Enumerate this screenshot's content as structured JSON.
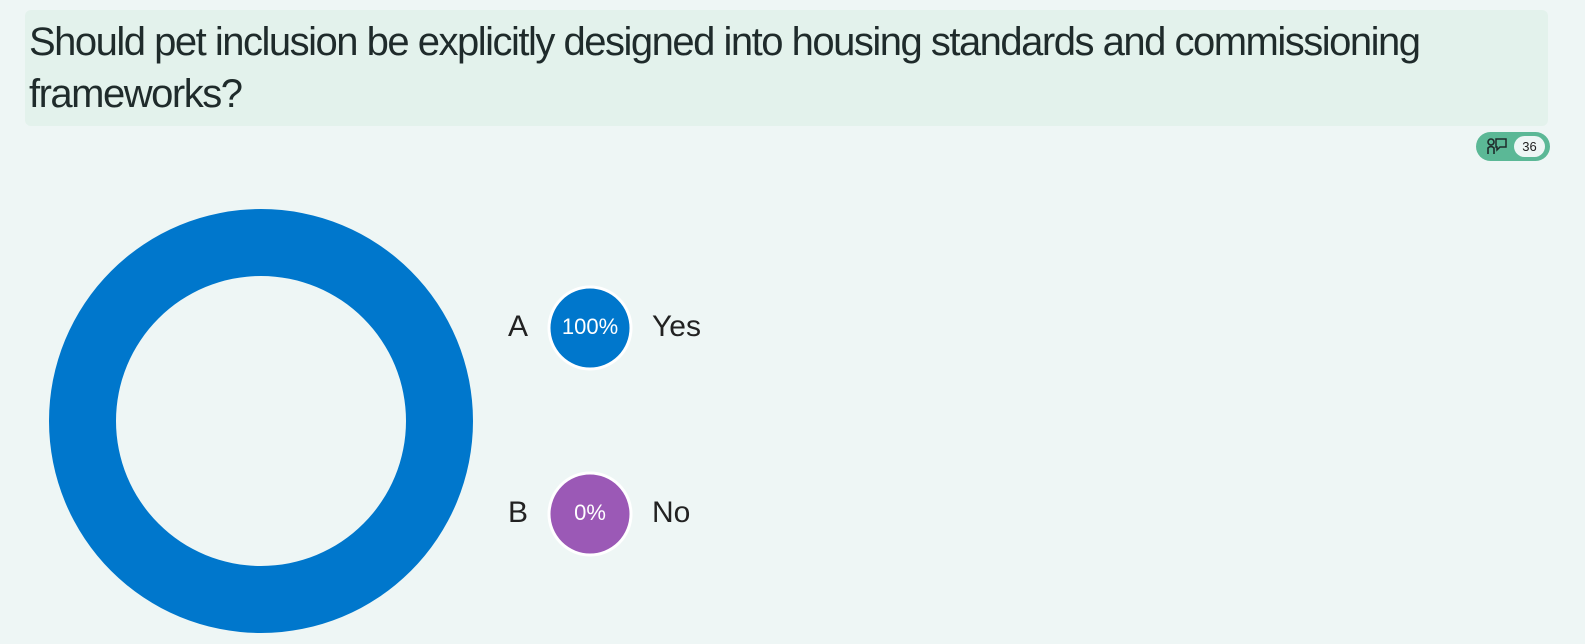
{
  "question": "Should pet inclusion be explicitly designed into housing standards and commissioning frameworks?",
  "responses": 36,
  "chart_data": {
    "type": "donut",
    "letters": [
      "A",
      "B"
    ],
    "categories": [
      "Yes",
      "No"
    ],
    "values": [
      100,
      0
    ],
    "value_labels": [
      "100%",
      "0%"
    ],
    "colors": [
      "#0077cc",
      "#9b59b6"
    ]
  }
}
